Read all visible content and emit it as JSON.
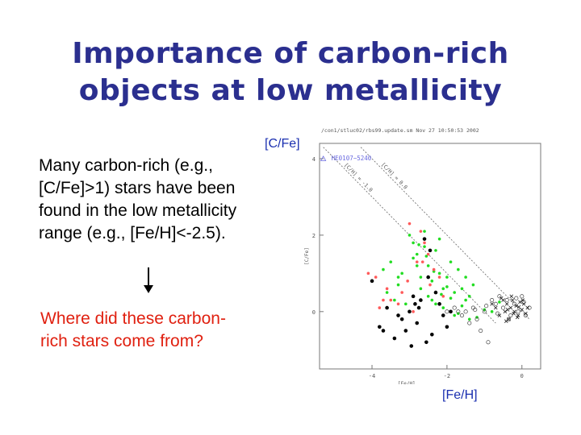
{
  "slide": {
    "title_line1": "Importance of carbon-rich",
    "title_line2": "objects at low metallicity",
    "body_lines": [
      "Many carbon-rich (e.g.,",
      "[C/Fe]>1) stars have been",
      "found in the low metallicity",
      "range (e.g., [Fe/H]<-2.5)."
    ],
    "question_lines": [
      "Where did these carbon-",
      "rich stars come from?"
    ],
    "y_caption": "[C/Fe]",
    "x_caption": "[Fe/H]",
    "colors": {
      "title": "#2b2f8f",
      "question": "#e02010",
      "caption": "#1a2fb0"
    }
  },
  "chart_data": {
    "type": "scatter",
    "header": "/con1/stluc02/rbs99.update.sm  Nov 27 10:50:53 2002",
    "xlabel": "[Fe/H]",
    "ylabel": "[C/Fe]",
    "xlim": [
      -5.4,
      0.5
    ],
    "ylim": [
      -1.5,
      4.4
    ],
    "xticks": [
      -4,
      -2,
      0
    ],
    "yticks": [
      0,
      2,
      4
    ],
    "grid": false,
    "lines": [
      {
        "label": "[C/H] = 0.0",
        "x": [
          -4.3,
          0.2
        ],
        "y": [
          4.3,
          -0.2
        ]
      },
      {
        "label": "[C/H] = -1.0",
        "x": [
          -5.3,
          -0.7
        ],
        "y": [
          4.3,
          -0.3
        ]
      }
    ],
    "annotations": [
      {
        "text": "HE0107−5240",
        "x": -5.3,
        "y": 4.0
      }
    ],
    "series": [
      {
        "marker": "triangle-open",
        "color": "#6a6ae0",
        "x": [
          -5.3
        ],
        "y": [
          4.0
        ]
      },
      {
        "marker": "dot",
        "color": "#22dd22",
        "x": [
          -3.7,
          -3.5,
          -3.3,
          -3.2,
          -3.0,
          -2.9,
          -2.8,
          -2.7,
          -2.6,
          -2.5,
          -2.4,
          -2.3,
          -2.2,
          -2.1,
          -2.0,
          -1.9,
          -1.8,
          -1.7,
          -1.6,
          -1.5,
          -1.4,
          -1.3,
          -3.4,
          -3.1,
          -2.9,
          -2.7,
          -2.5,
          -2.3,
          -2.1,
          -1.9,
          -1.7,
          -1.5,
          -1.2,
          -1.0,
          -0.8,
          -0.6,
          -3.6,
          -3.3,
          -2.8,
          -2.6,
          -2.4,
          -2.2,
          -2.0,
          -1.8,
          -1.6,
          -1.4,
          -2.75,
          -2.55,
          -2.35,
          -2.15
        ],
        "y": [
          1.1,
          1.3,
          0.7,
          1.0,
          2.0,
          1.8,
          1.5,
          0.9,
          1.7,
          1.2,
          0.8,
          1.6,
          1.0,
          0.6,
          0.9,
          1.3,
          0.5,
          1.1,
          0.6,
          0.9,
          0.4,
          0.7,
          0.3,
          0.2,
          1.4,
          0.6,
          0.4,
          0.2,
          0.1,
          0.35,
          -0.05,
          0.3,
          -0.15,
          0.05,
          0.0,
          0.25,
          0.5,
          0.9,
          1.2,
          2.1,
          0.3,
          1.9,
          0.65,
          -0.1,
          0.15,
          -0.2,
          1.75,
          1.45,
          1.05,
          0.45
        ]
      },
      {
        "marker": "dot",
        "color": "#ff5a5a",
        "x": [
          -4.1,
          -3.9,
          -3.7,
          -3.6,
          -3.3,
          -3.2,
          -3.0,
          -2.9,
          -2.8,
          -2.7,
          -2.6,
          -2.5,
          -2.45,
          -2.35,
          -2.2,
          -2.1,
          -3.8,
          -3.5,
          -3.05,
          -2.65
        ],
        "y": [
          1.0,
          0.9,
          0.3,
          0.6,
          0.2,
          0.5,
          2.3,
          0.0,
          1.3,
          2.1,
          1.8,
          1.5,
          0.7,
          1.1,
          0.9,
          0.4,
          0.1,
          0.3,
          0.8,
          1.3
        ]
      },
      {
        "marker": "dot",
        "color": "#000000",
        "x": [
          -4.0,
          -3.8,
          -3.6,
          -3.4,
          -3.2,
          -3.1,
          -3.0,
          -2.95,
          -2.9,
          -2.85,
          -2.8,
          -2.7,
          -2.6,
          -2.5,
          -2.4,
          -2.3,
          -2.2,
          -2.1,
          -2.0,
          -1.9,
          -3.7,
          -3.3,
          -2.75,
          -2.55,
          -2.45
        ],
        "y": [
          0.8,
          -0.4,
          0.1,
          -0.7,
          -0.2,
          -0.5,
          0.0,
          -0.9,
          0.4,
          0.2,
          -0.3,
          0.3,
          1.9,
          0.9,
          -0.6,
          0.5,
          0.2,
          -0.1,
          -0.4,
          0.0,
          -0.5,
          -0.1,
          0.1,
          -0.8,
          1.6
        ]
      },
      {
        "marker": "circle-open",
        "color": "#444444",
        "x": [
          -2.0,
          -1.8,
          -1.6,
          -1.5,
          -1.4,
          -1.3,
          -1.2,
          -1.1,
          -1.0,
          -0.9,
          -0.8,
          -0.7,
          -0.6,
          -0.5,
          -0.4,
          -0.3,
          -0.2,
          -0.1,
          0.0,
          0.1,
          0.2,
          -1.7,
          -1.25,
          -0.95,
          -0.65,
          -0.35,
          -0.15,
          0.05
        ],
        "y": [
          0.0,
          0.1,
          -0.1,
          0.0,
          -0.3,
          0.1,
          -0.2,
          -0.5,
          0.0,
          -0.8,
          0.3,
          0.2,
          0.4,
          0.1,
          0.3,
          -0.1,
          0.2,
          0.0,
          0.4,
          -0.1,
          0.1,
          0.0,
          0.05,
          0.15,
          -0.05,
          -0.2,
          0.35,
          0.25
        ]
      },
      {
        "marker": "cross",
        "color": "#222222",
        "x": [
          -0.8,
          -0.7,
          -0.6,
          -0.5,
          -0.45,
          -0.4,
          -0.35,
          -0.3,
          -0.25,
          -0.2,
          -0.15,
          -0.1,
          -0.05,
          0.0,
          0.05,
          0.1,
          0.15,
          -0.55,
          -0.42,
          -0.28,
          -0.12,
          0.02,
          -0.38,
          -0.22,
          -0.08
        ],
        "y": [
          0.2,
          0.1,
          -0.1,
          0.3,
          0.0,
          0.2,
          -0.2,
          0.1,
          0.3,
          0.0,
          0.15,
          -0.1,
          0.25,
          0.05,
          0.2,
          -0.05,
          0.1,
          0.35,
          -0.25,
          0.4,
          -0.15,
          0.3,
          0.05,
          -0.05,
          0.12
        ]
      }
    ]
  }
}
